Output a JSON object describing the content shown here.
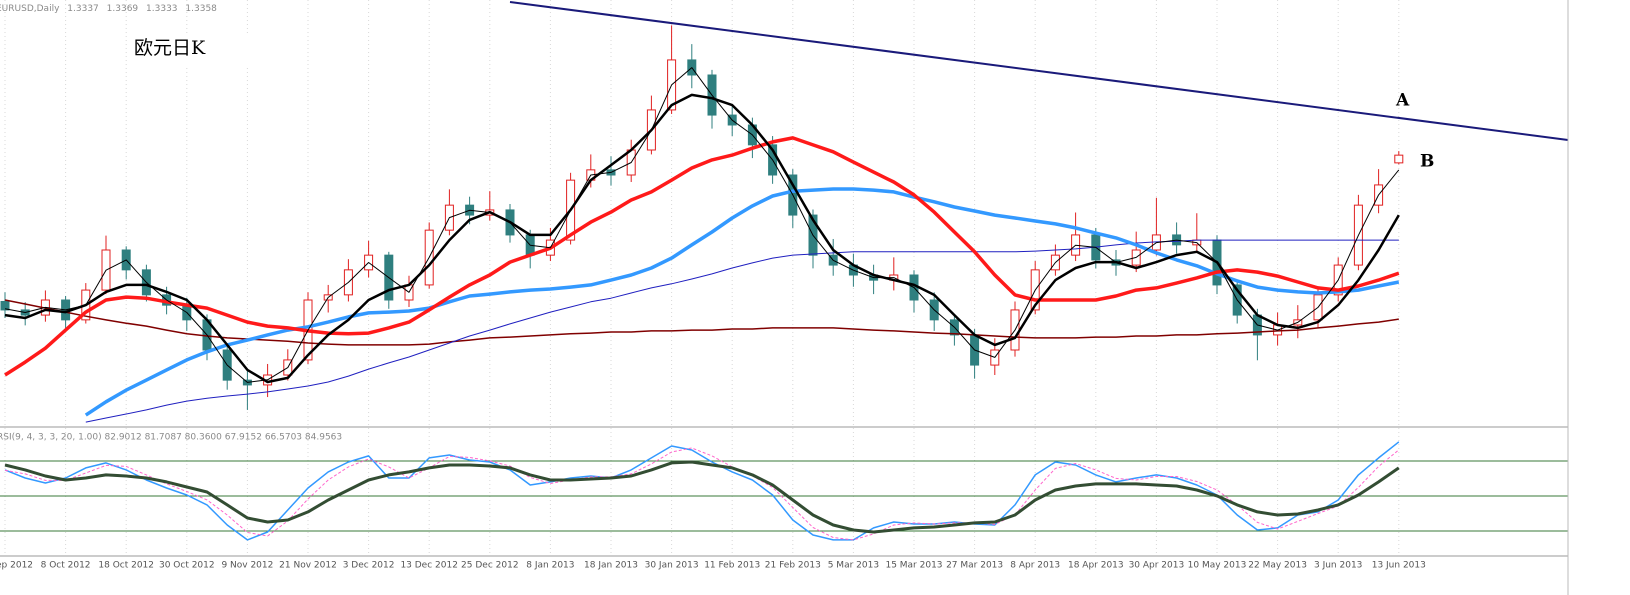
{
  "chart_data": {
    "type": "candlestick",
    "title": "欧元日K",
    "symbol": "EURUSD,Daily",
    "annotations": [
      "A",
      "B"
    ],
    "up_color": "#e02020",
    "down_color": "#2f7f7f",
    "ylim": [
      1.2624,
      1.378
    ],
    "categories": [
      "ep 2012",
      null,
      null,
      "8 Oct 2012",
      null,
      null,
      "18 Oct 2012",
      null,
      null,
      "30 Oct 2012",
      null,
      null,
      "9 Nov 2012",
      null,
      null,
      "21 Nov 2012",
      null,
      null,
      "3 Dec 2012",
      null,
      null,
      "13 Dec 2012",
      null,
      null,
      "25 Dec 2012",
      null,
      null,
      "8 Jan 2013",
      null,
      null,
      "18 Jan 2013",
      null,
      null,
      "30 Jan 2013",
      null,
      null,
      "11 Feb 2013",
      null,
      null,
      "21 Feb 2013",
      null,
      null,
      "5 Mar 2013",
      null,
      null,
      "15 Mar 2013",
      null,
      null,
      "27 Mar 2013",
      null,
      null,
      "8 Apr 2013",
      null,
      null,
      "18 Apr 2013",
      null,
      null,
      "30 Apr 2013",
      null,
      null,
      "10 May 2013",
      null,
      null,
      "22 May 2013",
      null,
      null,
      "3 Jun 2013",
      null,
      null,
      "13 Jun 2013"
    ],
    "open": [
      1.296,
      1.2937,
      1.2923,
      1.2964,
      1.291,
      1.2991,
      1.31,
      1.3046,
      1.2978,
      1.295,
      1.291,
      1.2828,
      1.2746,
      1.2733,
      1.276,
      1.2801,
      1.2964,
      1.2978,
      1.3046,
      1.3086,
      1.2964,
      1.3005,
      1.3154,
      1.3222,
      1.3195,
      1.3209,
      1.3141,
      1.3086,
      1.3127,
      1.329,
      1.3318,
      1.3304,
      1.3372,
      1.3481,
      1.3617,
      1.3576,
      1.3467,
      1.344,
      1.3386,
      1.3304,
      1.3195,
      1.3086,
      1.3059,
      1.3032,
      1.3018,
      1.3032,
      1.2964,
      1.291,
      1.2869,
      1.2787,
      1.2828,
      1.2937,
      1.3046,
      1.3086,
      1.3141,
      1.3073,
      1.3059,
      1.31,
      1.3141,
      1.3114,
      1.3127,
      1.3005,
      1.2923,
      1.2869,
      1.2896,
      1.291,
      1.2978,
      1.3059,
      1.3222,
      1.3337
    ],
    "high": [
      1.2985,
      1.2958,
      1.299,
      1.2975,
      1.301,
      1.3139,
      1.311,
      1.306,
      1.3,
      1.297,
      1.2925,
      1.2845,
      1.2775,
      1.279,
      1.283,
      1.2985,
      1.3005,
      1.3075,
      1.3125,
      1.3095,
      1.303,
      1.3175,
      1.3265,
      1.3245,
      1.326,
      1.3225,
      1.3155,
      1.316,
      1.331,
      1.336,
      1.3355,
      1.34,
      1.352,
      1.3711,
      1.366,
      1.359,
      1.3495,
      1.346,
      1.341,
      1.332,
      1.321,
      1.313,
      1.309,
      1.306,
      1.308,
      1.3045,
      1.2985,
      1.2925,
      1.2885,
      1.286,
      1.296,
      1.307,
      1.3115,
      1.3202,
      1.316,
      1.31,
      1.315,
      1.3242,
      1.3175,
      1.32,
      1.314,
      1.302,
      1.294,
      1.293,
      1.295,
      1.3,
      1.308,
      1.325,
      1.332,
      1.3369
    ],
    "low": [
      1.2915,
      1.2895,
      1.2905,
      1.288,
      1.29,
      1.298,
      1.302,
      1.296,
      1.2925,
      1.288,
      1.28,
      1.272,
      1.2665,
      1.27,
      1.2745,
      1.279,
      1.293,
      1.296,
      1.3025,
      1.294,
      1.2945,
      1.2995,
      1.314,
      1.317,
      1.318,
      1.312,
      1.305,
      1.307,
      1.3115,
      1.327,
      1.3275,
      1.3285,
      1.336,
      1.347,
      1.354,
      1.343,
      1.341,
      1.335,
      1.328,
      1.316,
      1.305,
      1.303,
      1.3,
      1.298,
      1.299,
      1.293,
      1.288,
      1.284,
      1.275,
      1.276,
      1.281,
      1.2925,
      1.303,
      1.307,
      1.305,
      1.303,
      1.304,
      1.3085,
      1.309,
      1.3095,
      1.298,
      1.29,
      1.28,
      1.284,
      1.286,
      1.289,
      1.296,
      1.3045,
      1.32,
      1.3333
    ],
    "close": [
      1.2937,
      1.2923,
      1.2964,
      1.291,
      1.2991,
      1.31,
      1.3046,
      1.2978,
      1.295,
      1.291,
      1.2828,
      1.2746,
      1.2733,
      1.276,
      1.2801,
      1.2964,
      1.2978,
      1.3046,
      1.3086,
      1.2964,
      1.3005,
      1.3154,
      1.3222,
      1.3195,
      1.3209,
      1.3141,
      1.3086,
      1.3127,
      1.329,
      1.3318,
      1.3304,
      1.3372,
      1.3481,
      1.3617,
      1.3576,
      1.3467,
      1.344,
      1.3386,
      1.3304,
      1.3195,
      1.3086,
      1.3059,
      1.3032,
      1.3018,
      1.3032,
      1.2964,
      1.291,
      1.2869,
      1.2787,
      1.2828,
      1.2937,
      1.3046,
      1.3086,
      1.3141,
      1.3073,
      1.3059,
      1.31,
      1.3141,
      1.3114,
      1.3127,
      1.3005,
      1.2923,
      1.2869,
      1.2896,
      1.291,
      1.2978,
      1.3059,
      1.3222,
      1.3277,
      1.3358
    ],
    "series": [
      {
        "color": "#800000",
        "width": 1.5,
        "values": [
          1.2964,
          1.2953,
          1.2942,
          1.2931,
          1.292,
          1.291,
          1.2901,
          1.2893,
          1.2882,
          1.2872,
          1.2866,
          1.2861,
          1.2858,
          1.2855,
          1.2852,
          1.2847,
          1.2844,
          1.2842,
          1.2842,
          1.2842,
          1.2842,
          1.2844,
          1.285,
          1.2855,
          1.2861,
          1.2863,
          1.2866,
          1.2869,
          1.2872,
          1.2874,
          1.2877,
          1.2877,
          1.288,
          1.288,
          1.2882,
          1.2882,
          1.2885,
          1.2885,
          1.2888,
          1.2888,
          1.2888,
          1.2888,
          1.2885,
          1.2882,
          1.288,
          1.2877,
          1.2874,
          1.2872,
          1.2869,
          1.2866,
          1.2863,
          1.2861,
          1.2861,
          1.2861,
          1.2863,
          1.2863,
          1.2866,
          1.2866,
          1.2869,
          1.2869,
          1.2872,
          1.2874,
          1.2877,
          1.288,
          1.2882,
          1.2888,
          1.2893,
          1.2899,
          1.2904,
          1.2912
        ]
      },
      {
        "color": "#2020c0",
        "width": 1,
        "values": [
          null,
          null,
          null,
          null,
          1.2632,
          1.2643,
          1.2654,
          1.2665,
          1.2678,
          1.2689,
          1.2697,
          1.2703,
          1.2708,
          1.2714,
          1.2722,
          1.273,
          1.2741,
          1.2757,
          1.2776,
          1.2793,
          1.2809,
          1.2828,
          1.2847,
          1.2866,
          1.2882,
          1.2899,
          1.2915,
          1.2931,
          1.2945,
          1.2959,
          1.2969,
          1.2983,
          1.2997,
          1.3008,
          1.3021,
          1.3035,
          1.3051,
          1.3065,
          1.3078,
          1.3086,
          1.3089,
          1.3092,
          1.3095,
          1.3095,
          1.3095,
          1.3095,
          1.3095,
          1.3095,
          1.3095,
          1.3095,
          1.3095,
          1.3097,
          1.31,
          1.3103,
          1.3108,
          1.3114,
          1.3119,
          1.3122,
          1.3124,
          1.3127,
          1.3127,
          1.3127,
          1.3127,
          1.3127,
          1.3127,
          1.3127,
          1.3127,
          1.3127,
          1.3127,
          1.3127
        ]
      },
      {
        "color": "#3399ff",
        "width": 3.5,
        "values": [
          null,
          null,
          null,
          null,
          1.2651,
          1.2687,
          1.2719,
          1.2746,
          1.2774,
          1.2801,
          1.2823,
          1.2842,
          1.2855,
          1.2869,
          1.2882,
          1.2891,
          1.2904,
          1.2918,
          1.2929,
          1.2931,
          1.2934,
          1.2942,
          1.2959,
          1.2975,
          1.298,
          1.2986,
          1.2991,
          1.2994,
          1.2999,
          1.3005,
          1.3018,
          1.3032,
          1.3051,
          1.3078,
          1.3114,
          1.3149,
          1.3187,
          1.322,
          1.3247,
          1.326,
          1.3263,
          1.3266,
          1.3266,
          1.3263,
          1.3258,
          1.3244,
          1.3231,
          1.3217,
          1.3206,
          1.3195,
          1.3187,
          1.3179,
          1.3171,
          1.316,
          1.3146,
          1.3133,
          1.3114,
          1.3092,
          1.3073,
          1.3057,
          1.3035,
          1.3016,
          1.2999,
          1.2991,
          1.2986,
          1.2983,
          1.2986,
          1.2991,
          1.3002,
          1.3013
        ]
      },
      {
        "color": "#ff1a1a",
        "width": 3.5,
        "values": [
          1.276,
          1.2795,
          1.2833,
          1.2882,
          1.2931,
          1.2964,
          1.2972,
          1.2969,
          1.2959,
          1.295,
          1.2942,
          1.2923,
          1.2904,
          1.2893,
          1.2888,
          1.288,
          1.2874,
          1.2872,
          1.2874,
          1.2888,
          1.2904,
          1.2937,
          1.2972,
          1.3005,
          1.3032,
          1.3067,
          1.3086,
          1.3105,
          1.3141,
          1.3176,
          1.3203,
          1.3236,
          1.3258,
          1.329,
          1.3323,
          1.3345,
          1.3358,
          1.3377,
          1.3394,
          1.3405,
          1.3386,
          1.3367,
          1.3339,
          1.3312,
          1.3285,
          1.325,
          1.3203,
          1.3149,
          1.3095,
          1.3032,
          1.2978,
          1.2964,
          1.2964,
          1.2964,
          1.2964,
          1.2975,
          1.2991,
          1.2997,
          1.301,
          1.3024,
          1.304,
          1.3046,
          1.304,
          1.3029,
          1.3013,
          1.2997,
          1.2991,
          1.3002,
          1.3018,
          1.3037
        ]
      },
      {
        "color": "#000000",
        "width": 2.5,
        "values": [
          1.2923,
          1.2915,
          1.2937,
          1.2931,
          1.295,
          1.2986,
          1.3005,
          1.3005,
          1.2986,
          1.2964,
          1.291,
          1.2842,
          1.2774,
          1.2741,
          1.2752,
          1.2814,
          1.2869,
          1.291,
          1.2964,
          1.2991,
          1.3005,
          1.3059,
          1.3127,
          1.3182,
          1.3203,
          1.3176,
          1.3141,
          1.3141,
          1.3209,
          1.329,
          1.3331,
          1.3372,
          1.3426,
          1.3494,
          1.3522,
          1.3513,
          1.3494,
          1.344,
          1.3372,
          1.3277,
          1.3182,
          1.31,
          1.3059,
          1.3032,
          1.3018,
          1.3005,
          1.2978,
          1.2923,
          1.2869,
          1.2842,
          1.2861,
          1.295,
          1.3018,
          1.3051,
          1.3067,
          1.3067,
          1.3051,
          1.3067,
          1.3086,
          1.3095,
          1.3067,
          1.2991,
          1.2923,
          1.2896,
          1.2888,
          1.2904,
          1.295,
          1.3018,
          1.31,
          1.3195
        ]
      },
      {
        "color": "#000000",
        "width": 1,
        "values": [
          1.294,
          1.293,
          1.2944,
          1.2937,
          1.295,
          1.3045,
          1.3073,
          1.3012,
          1.2964,
          1.293,
          1.2869,
          1.2787,
          1.274,
          1.2747,
          1.278,
          1.2882,
          1.2971,
          1.3012,
          1.3066,
          1.3025,
          1.2985,
          1.308,
          1.3188,
          1.3208,
          1.3202,
          1.3175,
          1.3113,
          1.3106,
          1.3208,
          1.3304,
          1.3311,
          1.3338,
          1.3426,
          1.3549,
          1.3596,
          1.3521,
          1.3453,
          1.3413,
          1.3345,
          1.325,
          1.314,
          1.3072,
          1.3045,
          1.3025,
          1.3025,
          1.2998,
          1.2937,
          1.289,
          1.2828,
          1.2808,
          1.2882,
          1.2991,
          1.3066,
          1.3113,
          1.3107,
          1.3066,
          1.308,
          1.312,
          1.3127,
          1.312,
          1.3066,
          1.2964,
          1.2896,
          1.2882,
          1.2903,
          1.2944,
          1.3018,
          1.314,
          1.325,
          1.3318
        ]
      }
    ],
    "indicator": {
      "type": "line",
      "title": "RSI(9, 4, 3, 3, 20, 1.00) 82.9012 81.7087 80.3600 67.9152 66.5703 84.9563",
      "ylim": [
        0,
        100
      ],
      "levels": [
        80,
        50,
        20
      ],
      "level_color": "#3a7a3a",
      "series": [
        {
          "color": "#3399ff",
          "width": 1.5,
          "values": [
            72.3,
            65.4,
            61.1,
            65.4,
            74.0,
            78.3,
            72.3,
            63.7,
            56.8,
            50.8,
            42.3,
            25.1,
            12.3,
            19.1,
            38.0,
            56.8,
            70.6,
            79.1,
            84.3,
            65.4,
            65.4,
            82.6,
            85.1,
            80.8,
            79.1,
            72.3,
            59.4,
            62.0,
            65.4,
            67.1,
            65.4,
            72.3,
            82.6,
            92.8,
            89.4,
            79.1,
            70.6,
            63.7,
            50.8,
            29.4,
            16.5,
            12.3,
            12.3,
            22.6,
            27.7,
            26.0,
            26.0,
            27.7,
            26.0,
            25.1,
            42.3,
            68.0,
            79.1,
            76.5,
            68.0,
            62.0,
            65.4,
            68.0,
            65.4,
            59.4,
            50.8,
            33.7,
            20.8,
            22.6,
            33.7,
            36.3,
            46.5,
            68.0,
            82.6,
            96.3
          ]
        },
        {
          "color": "#ff66cc",
          "width": 1,
          "dash": true,
          "values": [
            72.0,
            68.9,
            63.3,
            63.3,
            69.7,
            76.2,
            75.3,
            68.0,
            60.3,
            53.8,
            46.6,
            33.7,
            18.7,
            15.7,
            28.6,
            47.4,
            63.7,
            74.9,
            81.7,
            74.9,
            65.4,
            74.0,
            83.9,
            83.0,
            80.0,
            75.7,
            65.9,
            60.7,
            63.7,
            66.3,
            66.3,
            68.9,
            77.5,
            87.7,
            91.1,
            84.3,
            74.9,
            67.2,
            57.3,
            40.1,
            23.0,
            14.4,
            12.3,
            17.5,
            25.1,
            26.9,
            26.0,
            26.9,
            26.9,
            25.6,
            33.7,
            55.1,
            73.6,
            77.8,
            72.3,
            65.0,
            63.7,
            66.7,
            66.7,
            62.4,
            55.1,
            42.3,
            27.3,
            21.7,
            28.2,
            35.0,
            41.4,
            57.3,
            75.3,
            89.5
          ]
        },
        {
          "color": "#334d33",
          "width": 3,
          "values": [
            76.5,
            72.3,
            67.1,
            63.7,
            65.4,
            68.0,
            67.1,
            65.4,
            62.0,
            57.7,
            53.4,
            42.3,
            31.1,
            27.7,
            29.4,
            36.3,
            46.5,
            55.1,
            63.7,
            68.0,
            70.6,
            74.0,
            76.5,
            76.5,
            75.7,
            74.0,
            68.0,
            63.7,
            63.7,
            64.5,
            65.4,
            67.1,
            72.3,
            78.3,
            79.1,
            76.5,
            74.0,
            68.0,
            59.4,
            46.5,
            33.7,
            25.1,
            20.8,
            19.1,
            20.8,
            22.6,
            23.4,
            25.1,
            26.9,
            27.7,
            33.7,
            46.5,
            55.1,
            58.5,
            60.3,
            60.3,
            60.3,
            59.4,
            58.5,
            55.1,
            50.0,
            42.3,
            36.3,
            33.7,
            34.5,
            38.0,
            42.3,
            50.8,
            62.0,
            74.0
          ]
        }
      ]
    }
  }
}
